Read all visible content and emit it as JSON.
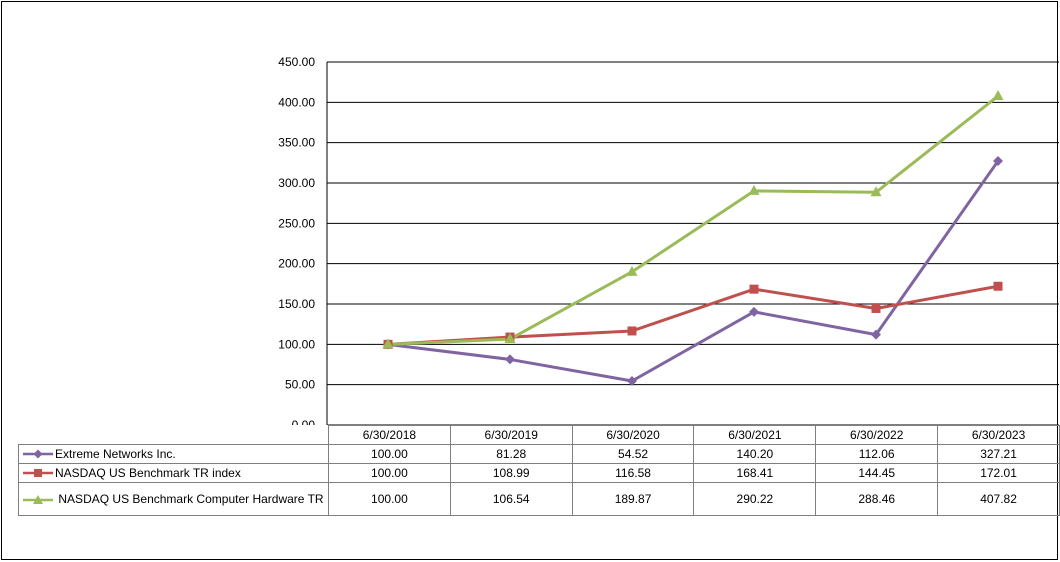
{
  "chart_data": {
    "type": "line",
    "categories": [
      "6/30/2018",
      "6/30/2019",
      "6/30/2020",
      "6/30/2021",
      "6/30/2022",
      "6/30/2023"
    ],
    "ylim": [
      0,
      450
    ],
    "yticks": [
      "0.00",
      "50.00",
      "100.00",
      "150.00",
      "200.00",
      "250.00",
      "300.00",
      "350.00",
      "400.00",
      "450.00"
    ],
    "grid": true,
    "legend": "data-table-below",
    "series": [
      {
        "name": "Extreme Networks Inc.",
        "color": "#8064a2",
        "marker": "diamond",
        "values": [
          100.0,
          81.28,
          54.52,
          140.2,
          112.06,
          327.21
        ],
        "labels": [
          "100.00",
          "81.28",
          "54.52",
          "140.20",
          "112.06",
          "327.21"
        ]
      },
      {
        "name": "NASDAQ US Benchmark TR index",
        "color": "#c0504d",
        "marker": "square",
        "values": [
          100.0,
          108.99,
          116.58,
          168.41,
          144.45,
          172.01
        ],
        "labels": [
          "100.00",
          "108.99",
          "116.58",
          "168.41",
          "144.45",
          "172.01"
        ]
      },
      {
        "name": "NASDAQ US Benchmark Computer Hardware TR",
        "color": "#9bbb59",
        "marker": "triangle",
        "values": [
          100.0,
          106.54,
          189.87,
          290.22,
          288.46,
          407.82
        ],
        "labels": [
          "100.00",
          "106.54",
          "189.87",
          "290.22",
          "288.46",
          "407.82"
        ]
      }
    ]
  }
}
